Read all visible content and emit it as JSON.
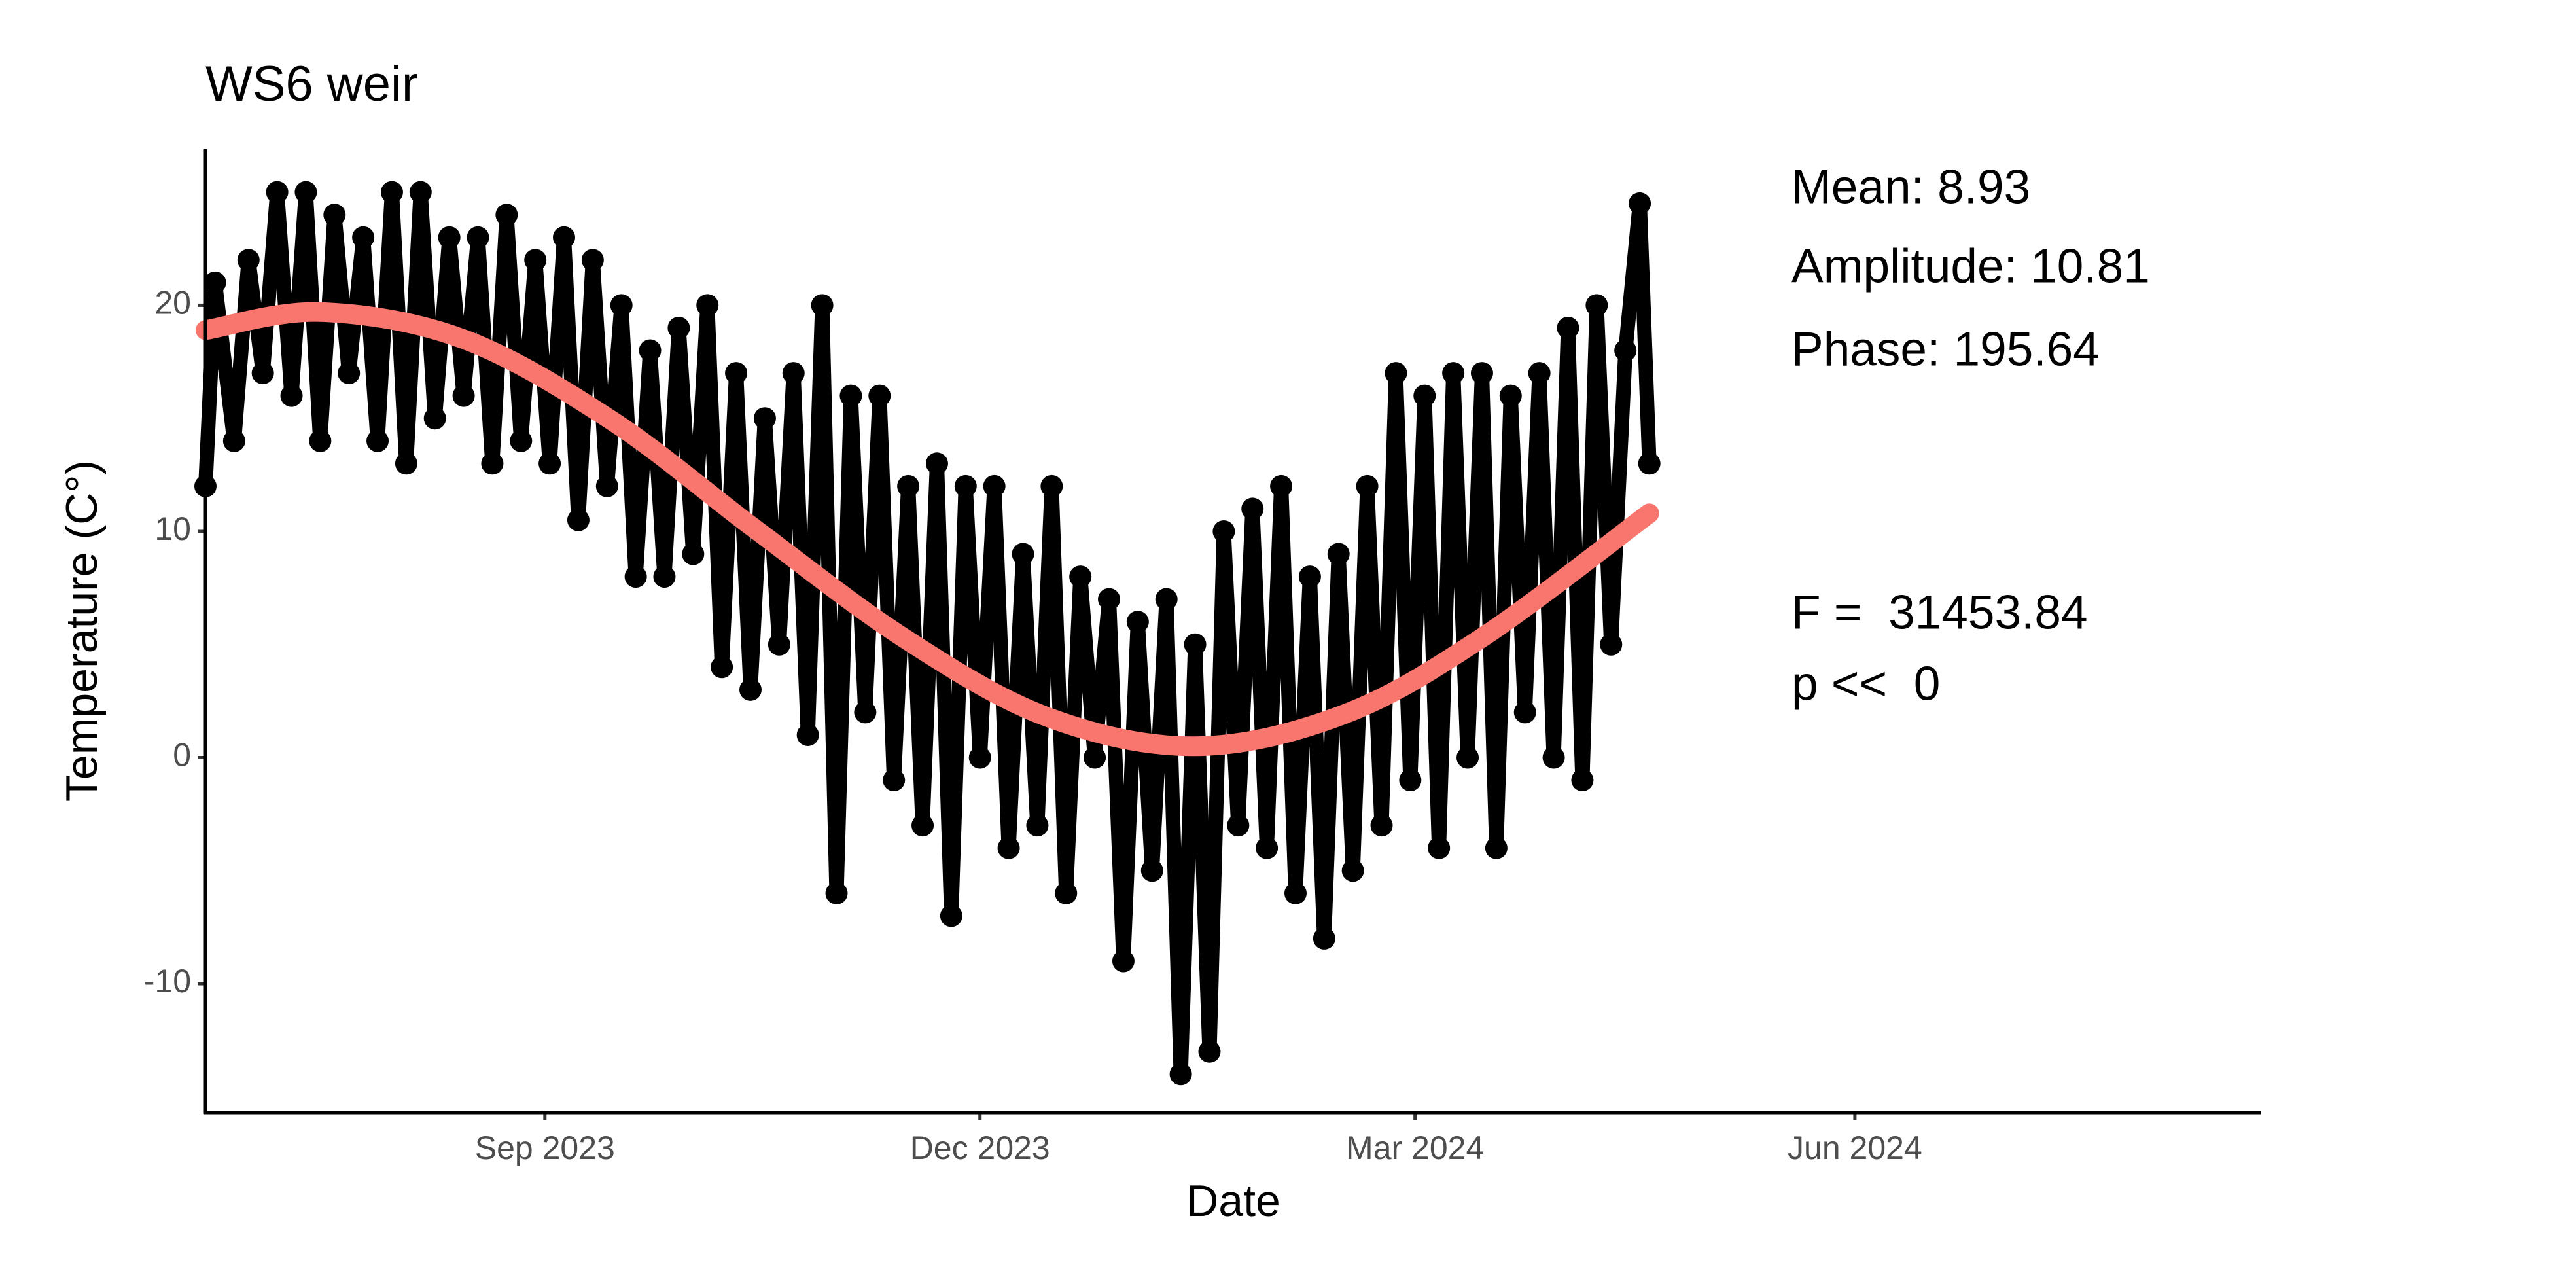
{
  "chart_data": {
    "type": "scatter",
    "title": "WS6 weir",
    "x_label": "Date",
    "y_label": "Temperature (C°)",
    "annotations": [
      "Mean: 8.93",
      "Amplitude: 10.81",
      "Phase: 195.64",
      "F =  31453.84",
      "p <<  0"
    ],
    "xlim": [
      "2023-06-22",
      "2024-08-25"
    ],
    "xticks": [
      {
        "value": "2023-09-01",
        "label": "Sep 2023"
      },
      {
        "value": "2023-12-01",
        "label": "Dec 2023"
      },
      {
        "value": "2024-03-01",
        "label": "Mar 2024"
      },
      {
        "value": "2024-06-01",
        "label": "Jun 2024"
      }
    ],
    "ylim": [
      -15.7,
      26.9
    ],
    "yticks": [
      -10,
      0,
      10,
      20
    ],
    "grid": false,
    "series": [
      {
        "type": "scatter",
        "color": "#000000",
        "x": [
          "2023-06-22",
          "2023-06-24",
          "2023-06-28",
          "2023-07-01",
          "2023-07-04",
          "2023-07-07",
          "2023-07-10",
          "2023-07-13",
          "2023-07-16",
          "2023-07-19",
          "2023-07-22",
          "2023-07-25",
          "2023-07-28",
          "2023-07-31",
          "2023-08-03",
          "2023-08-06",
          "2023-08-09",
          "2023-08-12",
          "2023-08-15",
          "2023-08-18",
          "2023-08-21",
          "2023-08-24",
          "2023-08-27",
          "2023-08-30",
          "2023-09-02",
          "2023-09-05",
          "2023-09-08",
          "2023-09-11",
          "2023-09-14",
          "2023-09-17",
          "2023-09-20",
          "2023-09-23",
          "2023-09-26",
          "2023-09-29",
          "2023-10-02",
          "2023-10-05",
          "2023-10-08",
          "2023-10-11",
          "2023-10-14",
          "2023-10-17",
          "2023-10-20",
          "2023-10-23",
          "2023-10-26",
          "2023-10-29",
          "2023-11-01",
          "2023-11-04",
          "2023-11-07",
          "2023-11-10",
          "2023-11-13",
          "2023-11-16",
          "2023-11-19",
          "2023-11-22",
          "2023-11-25",
          "2023-11-28",
          "2023-12-01",
          "2023-12-04",
          "2023-12-07",
          "2023-12-10",
          "2023-12-13",
          "2023-12-16",
          "2023-12-19",
          "2023-12-22",
          "2023-12-25",
          "2023-12-28",
          "2023-12-31",
          "2024-01-03",
          "2024-01-06",
          "2024-01-09",
          "2024-01-12",
          "2024-01-15",
          "2024-01-18",
          "2024-01-21",
          "2024-01-24",
          "2024-01-27",
          "2024-01-30",
          "2024-02-02",
          "2024-02-05",
          "2024-02-08",
          "2024-02-11",
          "2024-02-14",
          "2024-02-17",
          "2024-02-20",
          "2024-02-23",
          "2024-02-26",
          "2024-02-29",
          "2024-03-03",
          "2024-03-06",
          "2024-03-09",
          "2024-03-12",
          "2024-03-15",
          "2024-03-18",
          "2024-03-21",
          "2024-03-24",
          "2024-03-27",
          "2024-03-30",
          "2024-04-02",
          "2024-04-05",
          "2024-04-08",
          "2024-04-11",
          "2024-04-14",
          "2024-04-17",
          "2024-04-19"
        ],
        "values": [
          12,
          21,
          14,
          22,
          17,
          25,
          16,
          25,
          14,
          24,
          17,
          23,
          14,
          25,
          13,
          25,
          15,
          23,
          16,
          23,
          13,
          24,
          14,
          22,
          13,
          23,
          10.5,
          22,
          12,
          20,
          8,
          18,
          8,
          19,
          9,
          20,
          4,
          17,
          3,
          15,
          5,
          17,
          1,
          20,
          -6,
          16,
          2,
          16,
          -1,
          12,
          -3,
          13,
          -7,
          12,
          0,
          12,
          -4,
          9,
          -3,
          12,
          -6,
          8,
          0,
          7,
          -9,
          6,
          -5,
          7,
          -14,
          5,
          -13,
          10,
          -3,
          11,
          -4,
          12,
          -6,
          8,
          -8,
          9,
          -5,
          12,
          -3,
          17,
          -1,
          16,
          -4,
          17,
          0,
          17,
          -4,
          16,
          2,
          17,
          0,
          19,
          -1,
          20,
          5,
          18,
          24.5,
          13
        ]
      },
      {
        "type": "line",
        "color": "#f8766d",
        "x": [
          "2023-06-22",
          "2023-07-16",
          "2023-08-15",
          "2023-09-15",
          "2023-10-15",
          "2023-11-15",
          "2023-12-15",
          "2024-01-15",
          "2024-02-15",
          "2024-03-15",
          "2024-04-19"
        ],
        "values": [
          18.9,
          19.7,
          18.5,
          14.9,
          10.1,
          5.3,
          1.8,
          0.5,
          1.9,
          5.3,
          10.8
        ]
      }
    ]
  }
}
